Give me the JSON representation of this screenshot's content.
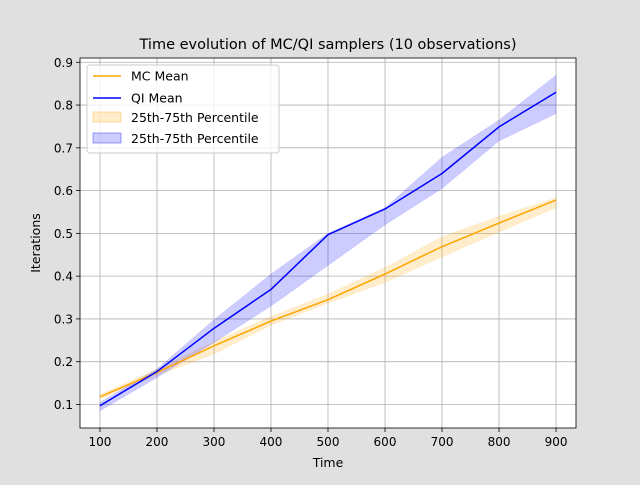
{
  "chart_data": {
    "type": "line",
    "title": "Time evolution of MC/QI samplers (10 observations)",
    "xlabel": "Time",
    "ylabel": "Iterations",
    "xlim": [
      65,
      935
    ],
    "ylim": [
      0.045,
      0.91
    ],
    "x": [
      100,
      200,
      300,
      400,
      500,
      600,
      700,
      800,
      900
    ],
    "xticks": [
      100,
      200,
      300,
      400,
      500,
      600,
      700,
      800,
      900
    ],
    "yticks": [
      0.1,
      0.2,
      0.3,
      0.4,
      0.5,
      0.6,
      0.7,
      0.8,
      0.9
    ],
    "grid": true,
    "legend_position": "top-left",
    "series": [
      {
        "name": "MC Mean",
        "color": "#ffa500",
        "values": [
          0.118,
          0.175,
          0.237,
          0.295,
          0.345,
          0.405,
          0.469,
          0.524,
          0.578
        ],
        "band_name": "25th-75th Percentile",
        "band_lower": [
          0.113,
          0.168,
          0.218,
          0.285,
          0.337,
          0.385,
          0.445,
          0.503,
          0.56
        ],
        "band_upper": [
          0.123,
          0.183,
          0.247,
          0.306,
          0.358,
          0.42,
          0.492,
          0.54,
          0.583
        ]
      },
      {
        "name": "QI Mean",
        "color": "#0000ff",
        "values": [
          0.097,
          0.177,
          0.278,
          0.369,
          0.497,
          0.557,
          0.64,
          0.749,
          0.83
        ],
        "band_name": "25th-75th Percentile",
        "band_lower": [
          0.085,
          0.163,
          0.245,
          0.33,
          0.425,
          0.52,
          0.605,
          0.716,
          0.78
        ],
        "band_upper": [
          0.105,
          0.183,
          0.298,
          0.405,
          0.5,
          0.56,
          0.678,
          0.765,
          0.87
        ]
      }
    ]
  }
}
